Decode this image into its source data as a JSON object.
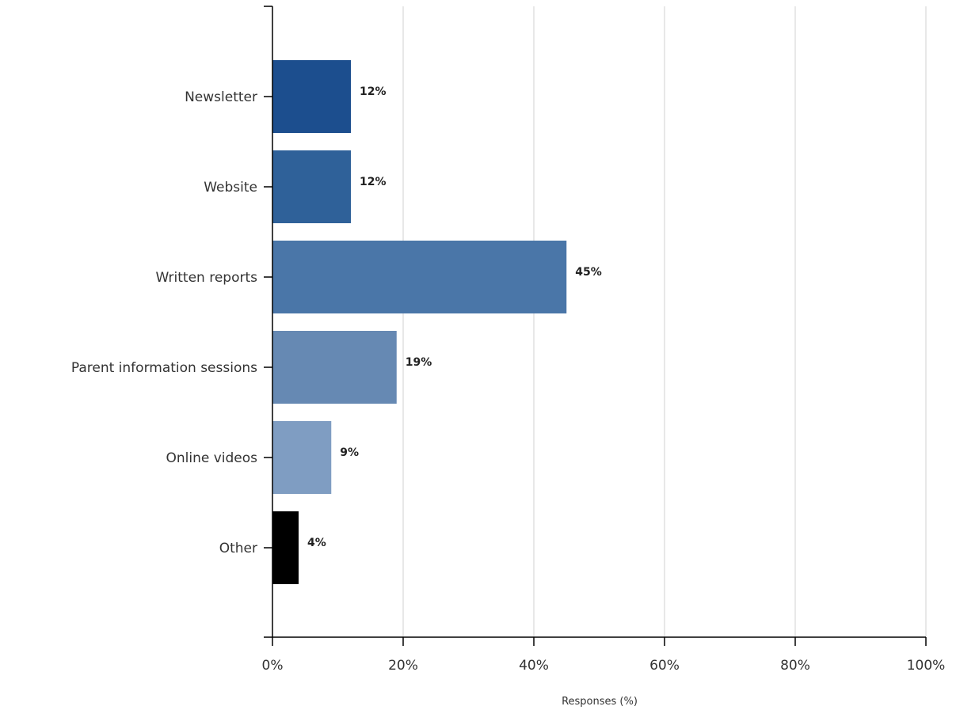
{
  "chart_data": {
    "type": "bar",
    "orientation": "horizontal",
    "categories": [
      "Newsletter",
      "Website",
      "Written reports",
      "Parent information sessions",
      "Online videos",
      "Other"
    ],
    "values": [
      12,
      12,
      45,
      19,
      9,
      4
    ],
    "data_labels": [
      "12%",
      "12%",
      "45%",
      "19%",
      "9%",
      "4%"
    ],
    "bar_colors": [
      "#1c4e8e",
      "#2f6199",
      "#4a76a8",
      "#6689b3",
      "#7f9dc2",
      "#000000"
    ],
    "xlabel": "Responses (%)",
    "ylabel": "",
    "xlim": [
      0,
      100
    ],
    "x_ticks": [
      0,
      20,
      40,
      60,
      80,
      100
    ],
    "x_tick_labels": [
      "0%",
      "20%",
      "40%",
      "60%",
      "80%",
      "100%"
    ],
    "grid": true,
    "grid_color": "#d9d9d9",
    "axis_color": "#000000",
    "legend": "none"
  }
}
